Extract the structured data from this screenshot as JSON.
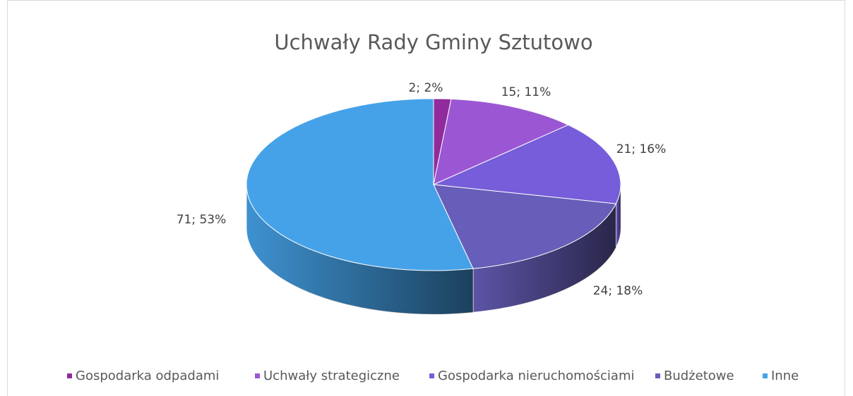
{
  "chart_data": {
    "type": "pie3d",
    "title": "Uchwały Rady Gminy Sztutowo",
    "categories": [
      "Gospodarka odpadami",
      "Uchwały strategiczne",
      "Gospodarka nieruchomościami",
      "Budżetowe",
      "Inne"
    ],
    "values": [
      2,
      15,
      21,
      24,
      71
    ],
    "value_labels": [
      "2; 2%",
      "15; 11%",
      "21; 16%",
      "24; 18%",
      "71; 53%"
    ],
    "colors": [
      "#922b9c",
      "#9b57d3",
      "#765dd9",
      "#665eb8",
      "#45a2e8"
    ],
    "legend": "bottom"
  }
}
